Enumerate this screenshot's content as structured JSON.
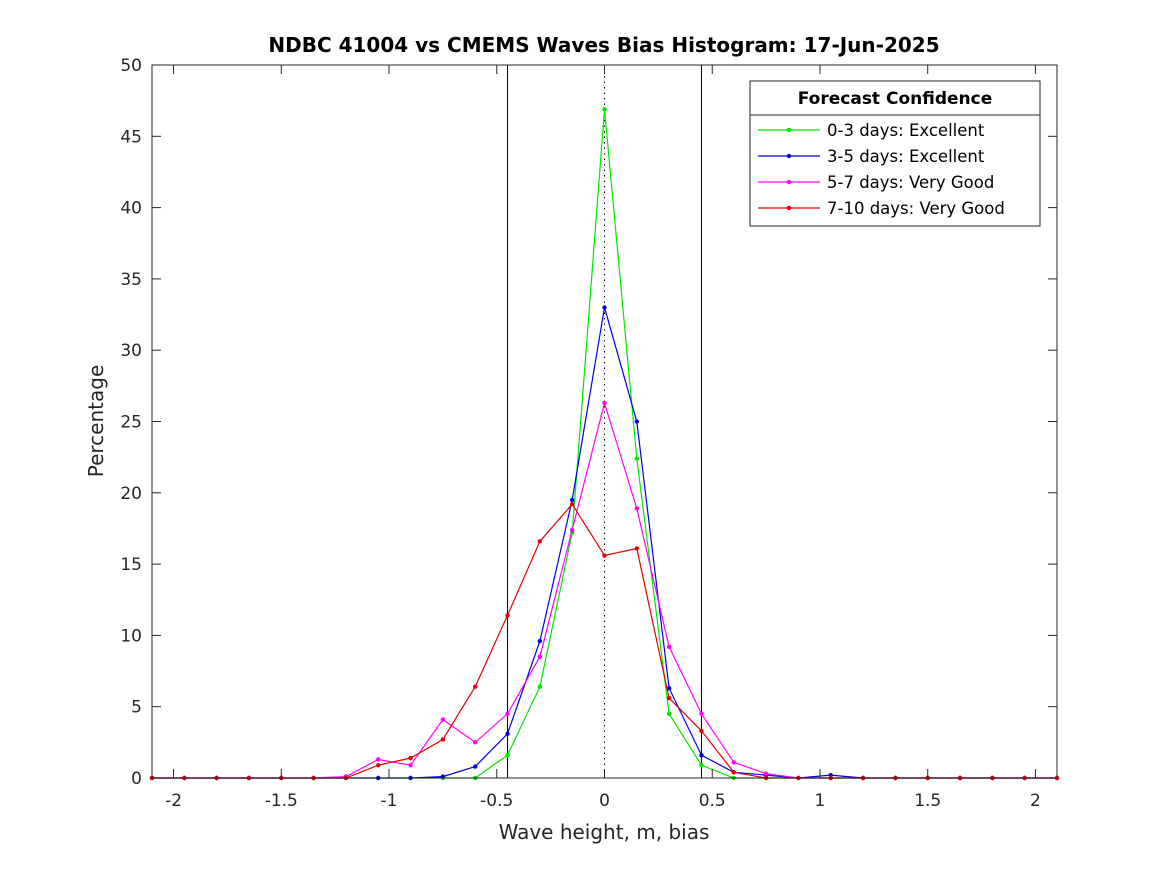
{
  "chart_data": {
    "type": "line",
    "title": "NDBC 41004 vs CMEMS Waves Bias Histogram: 17-Jun-2025",
    "xlabel": "Wave height, m, bias",
    "ylabel": "Percentage",
    "xlim": [
      -2.1,
      2.1
    ],
    "ylim": [
      0,
      50
    ],
    "xticks": [
      -2,
      -1.5,
      -1,
      -0.5,
      0,
      0.5,
      1,
      1.5,
      2
    ],
    "xtick_labels": [
      "-2",
      "-1.5",
      "-1",
      "-0.5",
      "0",
      "0.5",
      "1",
      "1.5",
      "2"
    ],
    "yticks": [
      0,
      5,
      10,
      15,
      20,
      25,
      30,
      35,
      40,
      45,
      50
    ],
    "ytick_labels": [
      "0",
      "5",
      "10",
      "15",
      "20",
      "25",
      "30",
      "35",
      "40",
      "45",
      "50"
    ],
    "grid": false,
    "reference_lines": {
      "solid_x": [
        -0.45,
        0.45
      ],
      "dotted_x": [
        0
      ],
      "color": "#000000"
    },
    "legend": {
      "title": "Forecast Confidence",
      "location": "top-right"
    },
    "x": [
      -2.1,
      -1.95,
      -1.8,
      -1.65,
      -1.5,
      -1.35,
      -1.2,
      -1.05,
      -0.9,
      -0.75,
      -0.6,
      -0.45,
      -0.3,
      -0.15,
      0,
      0.15,
      0.3,
      0.45,
      0.6,
      0.75,
      0.9,
      1.05,
      1.2,
      1.35,
      1.5,
      1.65,
      1.8,
      1.95,
      2.1
    ],
    "series": [
      {
        "name": "0-3 days: Excellent",
        "color": "#00e600",
        "values": [
          0,
          0,
          0,
          0,
          0,
          0,
          0,
          0,
          0,
          0,
          0,
          1.6,
          6.4,
          17.2,
          46.9,
          22.4,
          4.5,
          0.9,
          0,
          0,
          0,
          0,
          0,
          0,
          0,
          0,
          0,
          0,
          0
        ]
      },
      {
        "name": "3-5 days: Excellent",
        "color": "#0000e6",
        "values": [
          0,
          0,
          0,
          0,
          0,
          0,
          0,
          0,
          0,
          0.1,
          0.8,
          3.1,
          9.6,
          19.5,
          33.0,
          25.0,
          6.3,
          1.6,
          0.4,
          0.2,
          0,
          0.2,
          0,
          0,
          0,
          0,
          0,
          0,
          0
        ]
      },
      {
        "name": "5-7 days: Very Good",
        "color": "#ff00ff",
        "values": [
          0,
          0,
          0,
          0,
          0,
          0,
          0.1,
          1.3,
          0.9,
          4.1,
          2.5,
          4.5,
          8.5,
          17.4,
          26.3,
          18.9,
          9.2,
          4.5,
          1.1,
          0.3,
          0,
          0,
          0,
          0,
          0,
          0,
          0,
          0,
          0
        ]
      },
      {
        "name": "7-10 days: Very Good",
        "color": "#e60000",
        "values": [
          0,
          0,
          0,
          0,
          0,
          0,
          0,
          0.9,
          1.4,
          2.7,
          6.4,
          11.4,
          16.6,
          19.2,
          15.6,
          16.1,
          5.6,
          3.3,
          0.4,
          0,
          0,
          0,
          0,
          0,
          0,
          0,
          0,
          0,
          0
        ]
      }
    ]
  }
}
